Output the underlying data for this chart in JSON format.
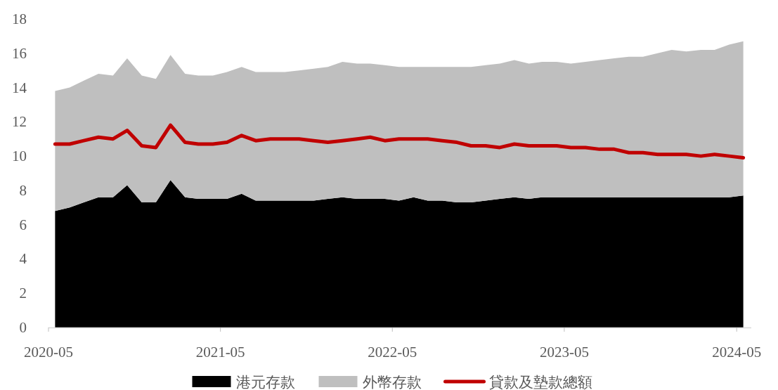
{
  "chart_data": {
    "type": "area",
    "stacked": true,
    "x": [
      "2020-05-15",
      "2020-06-15",
      "2020-07-15",
      "2020-08-15",
      "2020-09-15",
      "2020-10-15",
      "2020-11-15",
      "2020-12-15",
      "2021-01-15",
      "2021-02-15",
      "2021-03-15",
      "2021-04-15",
      "2021-05-15",
      "2021-06-15",
      "2021-07-15",
      "2021-08-15",
      "2021-09-15",
      "2021-10-15",
      "2021-11-15",
      "2021-12-15",
      "2022-01-15",
      "2022-02-15",
      "2022-03-15",
      "2022-04-15",
      "2022-05-15",
      "2022-06-15",
      "2022-07-15",
      "2022-08-15",
      "2022-09-15",
      "2022-10-15",
      "2022-11-15",
      "2022-12-15",
      "2023-01-15",
      "2023-02-15",
      "2023-03-15",
      "2023-04-15",
      "2023-05-15",
      "2023-06-15",
      "2023-07-15",
      "2023-08-15",
      "2023-09-15",
      "2023-10-15",
      "2023-11-15",
      "2023-12-15",
      "2024-01-15",
      "2024-02-15",
      "2024-03-15",
      "2024-04-15",
      "2024-05-15"
    ],
    "series": [
      {
        "name": "港元存款",
        "type": "area",
        "color": "#000000",
        "values": [
          6.8,
          7.0,
          7.3,
          7.6,
          7.6,
          8.3,
          7.3,
          7.3,
          8.6,
          7.6,
          7.5,
          7.5,
          7.5,
          7.8,
          7.4,
          7.4,
          7.4,
          7.4,
          7.4,
          7.5,
          7.6,
          7.5,
          7.5,
          7.5,
          7.4,
          7.6,
          7.4,
          7.4,
          7.3,
          7.3,
          7.4,
          7.5,
          7.6,
          7.5,
          7.6,
          7.6,
          7.6,
          7.6,
          7.6,
          7.6,
          7.6,
          7.6,
          7.6,
          7.6,
          7.6,
          7.6,
          7.6,
          7.6,
          7.7
        ]
      },
      {
        "name": "外幣存款",
        "type": "area",
        "color": "#bfbfbf",
        "values": [
          7.0,
          7.0,
          7.1,
          7.2,
          7.1,
          7.4,
          7.4,
          7.2,
          7.3,
          7.2,
          7.2,
          7.2,
          7.4,
          7.4,
          7.5,
          7.5,
          7.5,
          7.6,
          7.7,
          7.7,
          7.9,
          7.9,
          7.9,
          7.8,
          7.8,
          7.6,
          7.8,
          7.8,
          7.9,
          7.9,
          7.9,
          7.9,
          8.0,
          7.9,
          7.9,
          7.9,
          7.8,
          7.9,
          8.0,
          8.1,
          8.2,
          8.2,
          8.4,
          8.6,
          8.5,
          8.6,
          8.6,
          8.9,
          9.0
        ]
      },
      {
        "name": "貸款及墊款總額",
        "type": "line",
        "color": "#c00000",
        "values": [
          10.7,
          10.7,
          10.9,
          11.1,
          11.0,
          11.5,
          10.6,
          10.5,
          11.8,
          10.8,
          10.7,
          10.7,
          10.8,
          11.2,
          10.9,
          11.0,
          11.0,
          11.0,
          10.9,
          10.8,
          10.9,
          11.0,
          11.1,
          10.9,
          11.0,
          11.0,
          11.0,
          10.9,
          10.8,
          10.6,
          10.6,
          10.5,
          10.7,
          10.6,
          10.6,
          10.6,
          10.5,
          10.5,
          10.4,
          10.4,
          10.2,
          10.2,
          10.1,
          10.1,
          10.1,
          10.0,
          10.1,
          10.0,
          9.9
        ]
      }
    ],
    "xlim": [
      "2020-05",
      "2024-06"
    ],
    "xticks": [
      {
        "value": "2020-05",
        "label": "2020-05"
      },
      {
        "value": "2021-05",
        "label": "2021-05"
      },
      {
        "value": "2022-05",
        "label": "2022-05"
      },
      {
        "value": "2023-05",
        "label": "2023-05"
      },
      {
        "value": "2024-05",
        "label": "2024-05"
      }
    ],
    "ylim": [
      0,
      18
    ],
    "yticks": [
      0,
      2,
      4,
      6,
      8,
      10,
      12,
      14,
      16,
      18
    ],
    "grid": false,
    "legend": "bottom"
  }
}
